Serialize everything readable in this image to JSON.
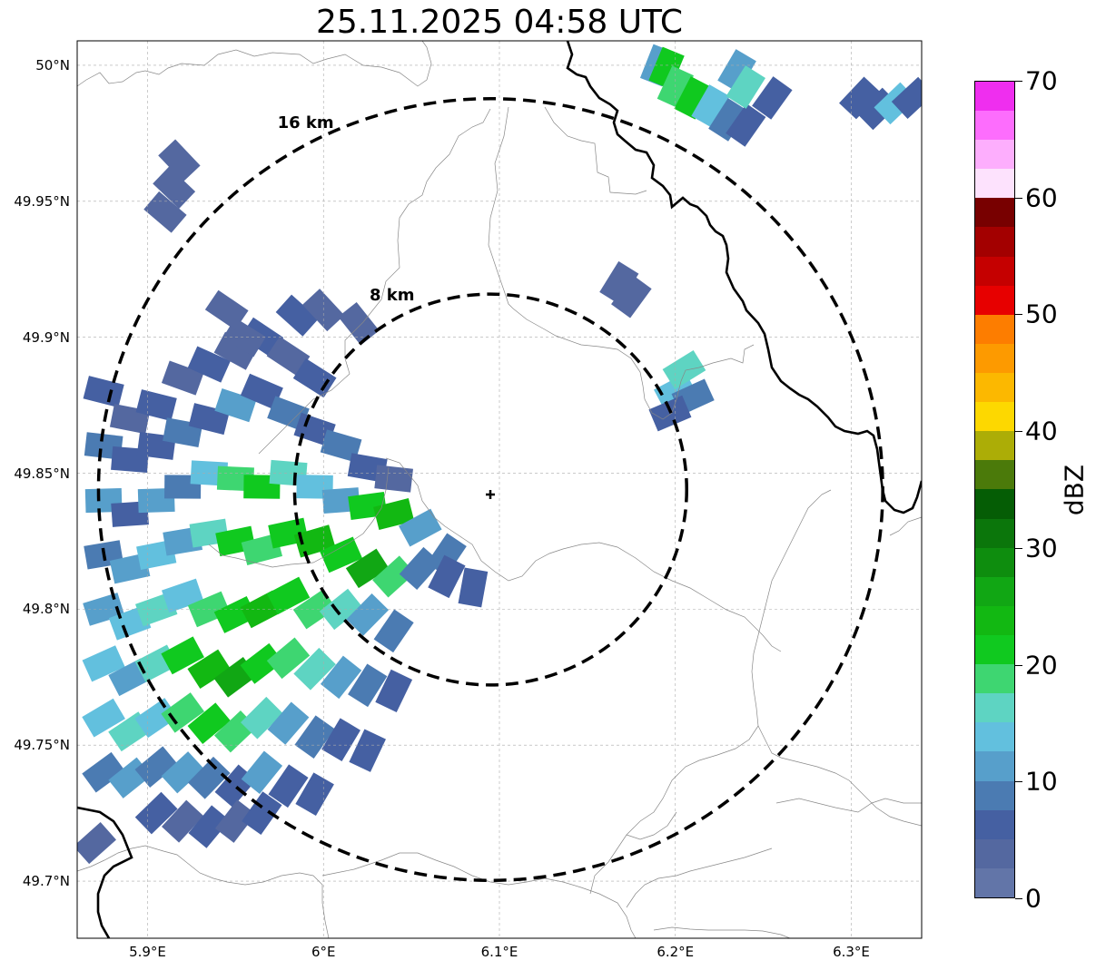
{
  "title": "25.11.2025 04:58 UTC",
  "map": {
    "lon_range": [
      5.86,
      6.34
    ],
    "lat_range": [
      49.679,
      50.009
    ],
    "center": {
      "lon": 6.095,
      "lat": 49.844
    },
    "lat_ticks": [
      {
        "value": 50.0,
        "label": "50°N"
      },
      {
        "value": 49.95,
        "label": "49.95°N"
      },
      {
        "value": 49.9,
        "label": "49.9°N"
      },
      {
        "value": 49.85,
        "label": "49.85°N"
      },
      {
        "value": 49.8,
        "label": "49.8°N"
      },
      {
        "value": 49.75,
        "label": "49.75°N"
      },
      {
        "value": 49.7,
        "label": "49.7°N"
      }
    ],
    "lon_ticks": [
      {
        "value": 5.9,
        "label": "5.9°E"
      },
      {
        "value": 6.0,
        "label": "6°E"
      },
      {
        "value": 6.1,
        "label": "6.1°E"
      },
      {
        "value": 6.2,
        "label": "6.2°E"
      },
      {
        "value": 6.3,
        "label": "6.3°E"
      }
    ],
    "rings": [
      {
        "label": "8 km",
        "radius_km": 8
      },
      {
        "label": "16 km",
        "radius_km": 16
      }
    ],
    "gridlines": true
  },
  "colorbar": {
    "unit": "dBZ",
    "min": 0,
    "max": 70,
    "step": 2.5,
    "ticks": [
      "0",
      "10",
      "20",
      "30",
      "40",
      "50",
      "60",
      "70"
    ],
    "colors": [
      "#6275a8",
      "#5468a0",
      "#4560a2",
      "#4b7bb2",
      "#579fcb",
      "#62c0de",
      "#5ed4c2",
      "#3ed671",
      "#10c91f",
      "#12b812",
      "#11a714",
      "#0e8d0e",
      "#0b760b",
      "#055d05",
      "#4b7a0a",
      "#acad06",
      "#fdd800",
      "#fcb800",
      "#fd9a00",
      "#fd7d00",
      "#e70000",
      "#c50000",
      "#a30000",
      "#780000",
      "#fde2fd",
      "#fdaefd",
      "#fd6dfd",
      "#ef2eef"
    ]
  },
  "radar_echoes": [
    {
      "lon": 5.875,
      "lat": 49.88,
      "dbz": 5
    },
    {
      "lon": 5.89,
      "lat": 49.87,
      "dbz": 4
    },
    {
      "lon": 5.905,
      "lat": 49.875,
      "dbz": 6
    },
    {
      "lon": 5.92,
      "lat": 49.885,
      "dbz": 3
    },
    {
      "lon": 5.935,
      "lat": 49.89,
      "dbz": 6
    },
    {
      "lon": 5.95,
      "lat": 49.895,
      "dbz": 4
    },
    {
      "lon": 5.965,
      "lat": 49.9,
      "dbz": 5
    },
    {
      "lon": 5.98,
      "lat": 49.893,
      "dbz": 3
    },
    {
      "lon": 5.995,
      "lat": 49.885,
      "dbz": 7
    },
    {
      "lon": 5.875,
      "lat": 49.86,
      "dbz": 8
    },
    {
      "lon": 5.89,
      "lat": 49.855,
      "dbz": 6
    },
    {
      "lon": 5.905,
      "lat": 49.86,
      "dbz": 5
    },
    {
      "lon": 5.92,
      "lat": 49.865,
      "dbz": 9
    },
    {
      "lon": 5.935,
      "lat": 49.87,
      "dbz": 5
    },
    {
      "lon": 5.95,
      "lat": 49.875,
      "dbz": 11
    },
    {
      "lon": 5.965,
      "lat": 49.88,
      "dbz": 6
    },
    {
      "lon": 5.98,
      "lat": 49.872,
      "dbz": 8
    },
    {
      "lon": 5.995,
      "lat": 49.866,
      "dbz": 5
    },
    {
      "lon": 6.01,
      "lat": 49.86,
      "dbz": 9
    },
    {
      "lon": 6.025,
      "lat": 49.852,
      "dbz": 6
    },
    {
      "lon": 6.04,
      "lat": 49.848,
      "dbz": 4
    },
    {
      "lon": 5.875,
      "lat": 49.84,
      "dbz": 10
    },
    {
      "lon": 5.89,
      "lat": 49.835,
      "dbz": 7
    },
    {
      "lon": 5.905,
      "lat": 49.84,
      "dbz": 12
    },
    {
      "lon": 5.92,
      "lat": 49.845,
      "dbz": 8
    },
    {
      "lon": 5.935,
      "lat": 49.85,
      "dbz": 14
    },
    {
      "lon": 5.95,
      "lat": 49.848,
      "dbz": 18
    },
    {
      "lon": 5.965,
      "lat": 49.845,
      "dbz": 22
    },
    {
      "lon": 5.98,
      "lat": 49.85,
      "dbz": 16
    },
    {
      "lon": 5.995,
      "lat": 49.845,
      "dbz": 13
    },
    {
      "lon": 6.01,
      "lat": 49.84,
      "dbz": 10
    },
    {
      "lon": 6.025,
      "lat": 49.838,
      "dbz": 21
    },
    {
      "lon": 6.04,
      "lat": 49.835,
      "dbz": 23
    },
    {
      "lon": 6.055,
      "lat": 49.83,
      "dbz": 12
    },
    {
      "lon": 6.07,
      "lat": 49.82,
      "dbz": 8
    },
    {
      "lon": 6.085,
      "lat": 49.808,
      "dbz": 5
    },
    {
      "lon": 5.875,
      "lat": 49.82,
      "dbz": 9
    },
    {
      "lon": 5.89,
      "lat": 49.815,
      "dbz": 11
    },
    {
      "lon": 5.905,
      "lat": 49.82,
      "dbz": 13
    },
    {
      "lon": 5.92,
      "lat": 49.825,
      "dbz": 10
    },
    {
      "lon": 5.935,
      "lat": 49.828,
      "dbz": 15
    },
    {
      "lon": 5.95,
      "lat": 49.825,
      "dbz": 20
    },
    {
      "lon": 5.965,
      "lat": 49.822,
      "dbz": 18
    },
    {
      "lon": 5.98,
      "lat": 49.828,
      "dbz": 22
    },
    {
      "lon": 5.995,
      "lat": 49.825,
      "dbz": 24
    },
    {
      "lon": 6.01,
      "lat": 49.82,
      "dbz": 22
    },
    {
      "lon": 6.025,
      "lat": 49.815,
      "dbz": 25
    },
    {
      "lon": 6.04,
      "lat": 49.812,
      "dbz": 18
    },
    {
      "lon": 6.055,
      "lat": 49.815,
      "dbz": 9
    },
    {
      "lon": 6.07,
      "lat": 49.812,
      "dbz": 6
    },
    {
      "lon": 5.875,
      "lat": 49.8,
      "dbz": 12
    },
    {
      "lon": 5.89,
      "lat": 49.795,
      "dbz": 14
    },
    {
      "lon": 5.905,
      "lat": 49.8,
      "dbz": 16
    },
    {
      "lon": 5.92,
      "lat": 49.805,
      "dbz": 13
    },
    {
      "lon": 5.935,
      "lat": 49.8,
      "dbz": 19
    },
    {
      "lon": 5.95,
      "lat": 49.798,
      "dbz": 22
    },
    {
      "lon": 5.965,
      "lat": 49.8,
      "dbz": 24
    },
    {
      "lon": 5.98,
      "lat": 49.805,
      "dbz": 21
    },
    {
      "lon": 5.995,
      "lat": 49.8,
      "dbz": 19
    },
    {
      "lon": 6.01,
      "lat": 49.8,
      "dbz": 16
    },
    {
      "lon": 6.025,
      "lat": 49.798,
      "dbz": 12
    },
    {
      "lon": 6.04,
      "lat": 49.792,
      "dbz": 8
    },
    {
      "lon": 5.875,
      "lat": 49.78,
      "dbz": 14
    },
    {
      "lon": 5.89,
      "lat": 49.775,
      "dbz": 12
    },
    {
      "lon": 5.905,
      "lat": 49.78,
      "dbz": 17
    },
    {
      "lon": 5.92,
      "lat": 49.783,
      "dbz": 20
    },
    {
      "lon": 5.935,
      "lat": 49.778,
      "dbz": 23
    },
    {
      "lon": 5.95,
      "lat": 49.775,
      "dbz": 26
    },
    {
      "lon": 5.965,
      "lat": 49.78,
      "dbz": 22
    },
    {
      "lon": 5.98,
      "lat": 49.782,
      "dbz": 18
    },
    {
      "lon": 5.995,
      "lat": 49.778,
      "dbz": 15
    },
    {
      "lon": 6.01,
      "lat": 49.775,
      "dbz": 11
    },
    {
      "lon": 6.025,
      "lat": 49.772,
      "dbz": 8
    },
    {
      "lon": 6.04,
      "lat": 49.77,
      "dbz": 6
    },
    {
      "lon": 5.875,
      "lat": 49.76,
      "dbz": 13
    },
    {
      "lon": 5.89,
      "lat": 49.755,
      "dbz": 15
    },
    {
      "lon": 5.905,
      "lat": 49.76,
      "dbz": 14
    },
    {
      "lon": 5.92,
      "lat": 49.762,
      "dbz": 19
    },
    {
      "lon": 5.935,
      "lat": 49.758,
      "dbz": 21
    },
    {
      "lon": 5.95,
      "lat": 49.755,
      "dbz": 18
    },
    {
      "lon": 5.965,
      "lat": 49.76,
      "dbz": 15
    },
    {
      "lon": 5.98,
      "lat": 49.758,
      "dbz": 12
    },
    {
      "lon": 5.995,
      "lat": 49.753,
      "dbz": 9
    },
    {
      "lon": 6.01,
      "lat": 49.752,
      "dbz": 7
    },
    {
      "lon": 6.025,
      "lat": 49.748,
      "dbz": 5
    },
    {
      "lon": 5.875,
      "lat": 49.74,
      "dbz": 9
    },
    {
      "lon": 5.89,
      "lat": 49.738,
      "dbz": 11
    },
    {
      "lon": 5.905,
      "lat": 49.742,
      "dbz": 8
    },
    {
      "lon": 5.92,
      "lat": 49.74,
      "dbz": 12
    },
    {
      "lon": 5.935,
      "lat": 49.738,
      "dbz": 9
    },
    {
      "lon": 5.95,
      "lat": 49.735,
      "dbz": 7
    },
    {
      "lon": 5.965,
      "lat": 49.74,
      "dbz": 10
    },
    {
      "lon": 5.98,
      "lat": 49.735,
      "dbz": 6
    },
    {
      "lon": 5.995,
      "lat": 49.732,
      "dbz": 5
    },
    {
      "lon": 5.905,
      "lat": 49.725,
      "dbz": 5
    },
    {
      "lon": 5.92,
      "lat": 49.722,
      "dbz": 4
    },
    {
      "lon": 5.935,
      "lat": 49.72,
      "dbz": 6
    },
    {
      "lon": 5.95,
      "lat": 49.722,
      "dbz": 4
    },
    {
      "lon": 5.965,
      "lat": 49.725,
      "dbz": 5
    },
    {
      "lon": 5.87,
      "lat": 49.714,
      "dbz": 4
    },
    {
      "lon": 5.955,
      "lat": 49.9,
      "dbz": 3
    },
    {
      "lon": 5.945,
      "lat": 49.91,
      "dbz": 4
    },
    {
      "lon": 5.985,
      "lat": 49.908,
      "dbz": 5
    },
    {
      "lon": 6.0,
      "lat": 49.91,
      "dbz": 4
    },
    {
      "lon": 6.02,
      "lat": 49.905,
      "dbz": 3
    },
    {
      "lon": 5.91,
      "lat": 49.946,
      "dbz": 4
    },
    {
      "lon": 5.915,
      "lat": 49.955,
      "dbz": 4
    },
    {
      "lon": 5.918,
      "lat": 49.965,
      "dbz": 3
    },
    {
      "lon": 6.168,
      "lat": 49.92,
      "dbz": 4
    },
    {
      "lon": 6.175,
      "lat": 49.915,
      "dbz": 3
    },
    {
      "lon": 6.2,
      "lat": 49.88,
      "dbz": 14
    },
    {
      "lon": 6.205,
      "lat": 49.888,
      "dbz": 16
    },
    {
      "lon": 6.21,
      "lat": 49.878,
      "dbz": 8
    },
    {
      "lon": 6.197,
      "lat": 49.872,
      "dbz": 6
    },
    {
      "lon": 6.19,
      "lat": 50.0,
      "dbz": 10
    },
    {
      "lon": 6.195,
      "lat": 49.999,
      "dbz": 22
    },
    {
      "lon": 6.2,
      "lat": 49.992,
      "dbz": 18
    },
    {
      "lon": 6.21,
      "lat": 49.988,
      "dbz": 20
    },
    {
      "lon": 6.22,
      "lat": 49.985,
      "dbz": 14
    },
    {
      "lon": 6.23,
      "lat": 49.98,
      "dbz": 9
    },
    {
      "lon": 6.24,
      "lat": 49.978,
      "dbz": 6
    },
    {
      "lon": 6.235,
      "lat": 49.998,
      "dbz": 12
    },
    {
      "lon": 6.24,
      "lat": 49.992,
      "dbz": 15
    },
    {
      "lon": 6.255,
      "lat": 49.988,
      "dbz": 7
    },
    {
      "lon": 6.305,
      "lat": 49.988,
      "dbz": 5
    },
    {
      "lon": 6.315,
      "lat": 49.984,
      "dbz": 6
    },
    {
      "lon": 6.325,
      "lat": 49.986,
      "dbz": 14
    },
    {
      "lon": 6.335,
      "lat": 49.988,
      "dbz": 5
    }
  ]
}
